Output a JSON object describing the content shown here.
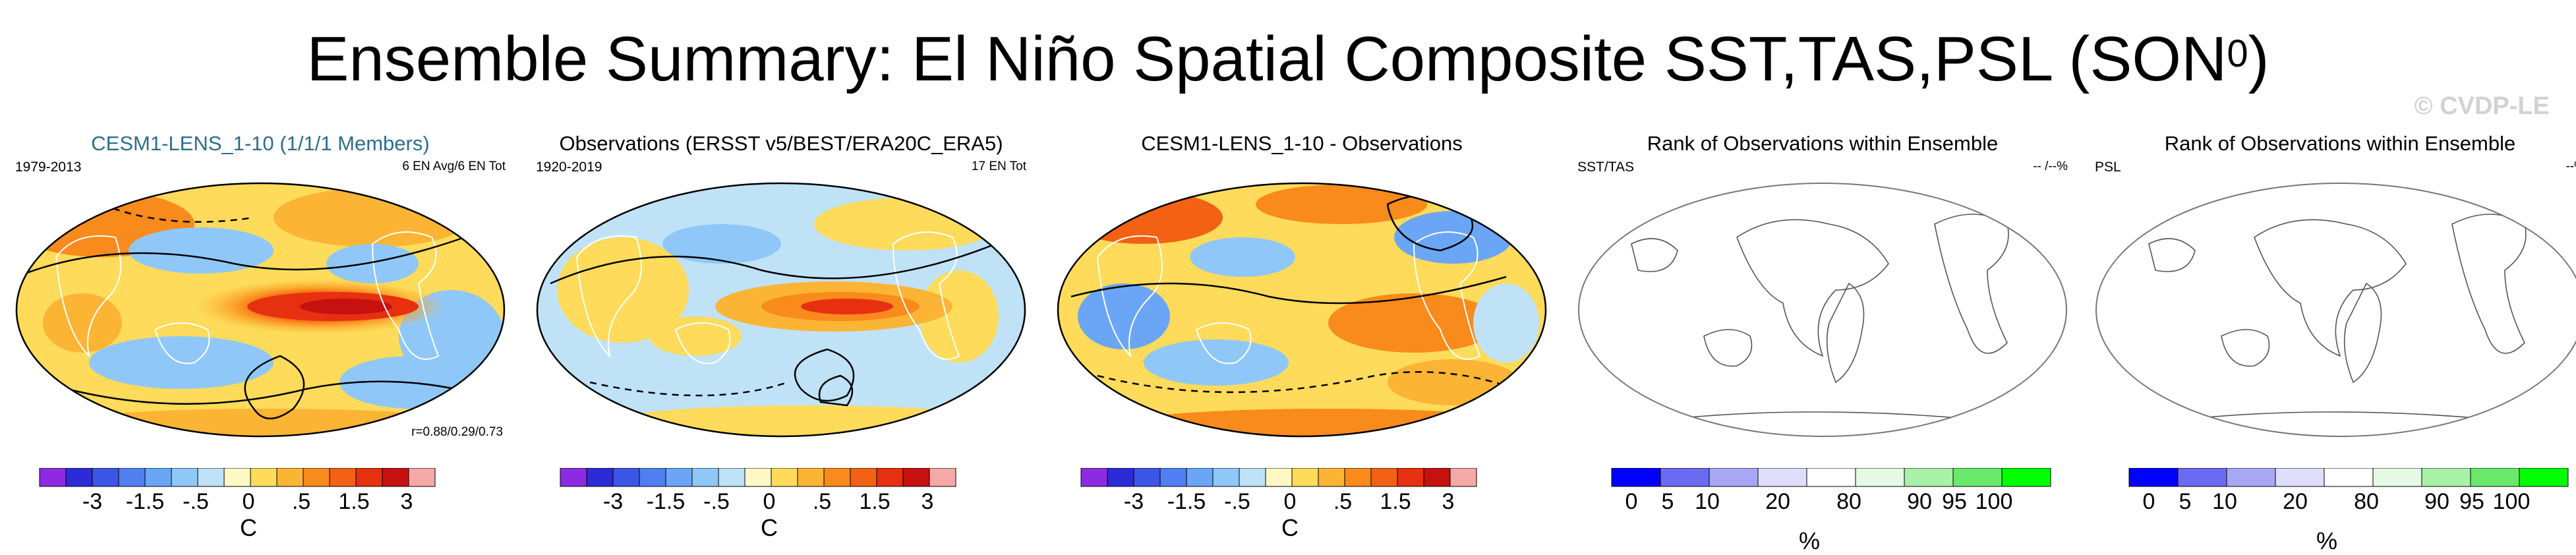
{
  "title": {
    "main": "Ensemble Summary: El Niño Spatial Composite SST,TAS,PSL (SON",
    "sup": "0",
    "end": ")"
  },
  "credit": "© CVDP-LE",
  "colors": {
    "diverging": [
      "#8c2be2",
      "#2b2bd7",
      "#3b56e6",
      "#4f7ff0",
      "#6aa6f5",
      "#8fc8f8",
      "#bfe2f7",
      "#fff8c4",
      "#fedb5a",
      "#fcb434",
      "#f98a1c",
      "#f26114",
      "#e63010",
      "#c71010",
      "#f6a7a7"
    ],
    "rank": [
      "#0000ff",
      "#6a6af2",
      "#a7a7f6",
      "#dedefa",
      "#ffffff",
      "#e4fae4",
      "#a7f2a7",
      "#6ae86a",
      "#00ff00"
    ]
  },
  "panels": [
    {
      "title": "CESM1-LENS_1-10 (1/1/1 Members)",
      "left_label": "1979-2013",
      "right_label": "6 EN Avg/6 EN Tot",
      "stat": "r=0.88/0.29/0.73",
      "colorbar": {
        "ticks": [
          "-3",
          "-1.5",
          "-.5",
          "0",
          ".5",
          "1.5",
          "3"
        ],
        "unit": "C"
      }
    },
    {
      "title": "Observations (ERSST v5/BEST/ERA20C_ERA5)",
      "left_label": "1920-2019",
      "right_label": "17 EN Tot",
      "colorbar": {
        "ticks": [
          "-3",
          "-1.5",
          "-.5",
          "0",
          ".5",
          "1.5",
          "3"
        ],
        "unit": "C"
      }
    },
    {
      "title": "CESM1-LENS_1-10 - Observations",
      "colorbar": {
        "ticks": [
          "-3",
          "-1.5",
          "-.5",
          "0",
          ".5",
          "1.5",
          "3"
        ],
        "unit": "C"
      }
    },
    {
      "title": "Rank of Observations within Ensemble",
      "left_label": "SST/TAS",
      "right_label": "-- /--%",
      "colorbar": {
        "ticks": [
          "0",
          "5",
          "10",
          "20",
          "80",
          "90",
          "95",
          "100"
        ],
        "unit": "%"
      }
    },
    {
      "title": "Rank of Observations within Ensemble",
      "left_label": "PSL",
      "right_label": "--%",
      "colorbar": {
        "ticks": [
          "0",
          "5",
          "10",
          "20",
          "80",
          "90",
          "95",
          "100"
        ],
        "unit": "%"
      }
    }
  ]
}
